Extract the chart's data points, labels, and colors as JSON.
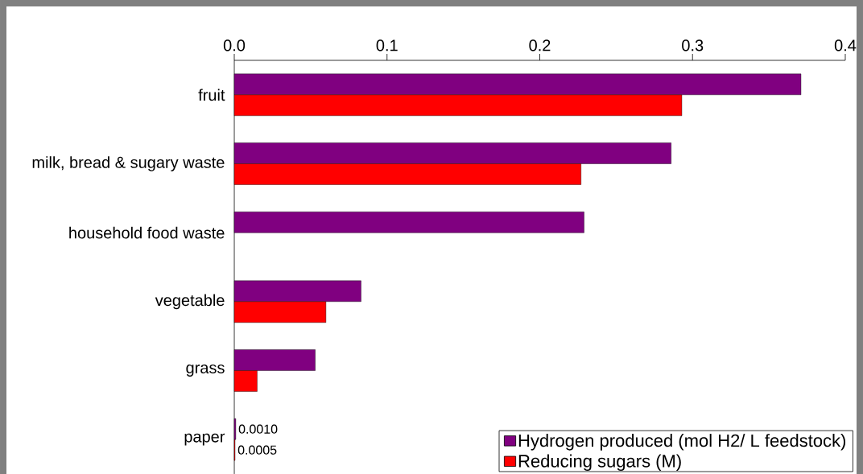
{
  "chart_data": {
    "type": "bar",
    "orientation": "horizontal",
    "categories": [
      "fruit",
      "milk, bread & sugary waste",
      "household food waste",
      "vegetable",
      "grass",
      "paper"
    ],
    "series": [
      {
        "name": "Hydrogen produced (mol H2/ L feedstock)",
        "color": "#800080",
        "values": [
          0.371,
          0.286,
          0.229,
          0.083,
          0.053,
          0.001
        ],
        "value_labels": [
          null,
          null,
          null,
          null,
          null,
          "0.0010"
        ]
      },
      {
        "name": "Reducing sugars (M)",
        "color": "#ff0000",
        "values": [
          0.293,
          0.227,
          null,
          0.06,
          0.015,
          0.0005
        ],
        "value_labels": [
          null,
          null,
          null,
          null,
          null,
          "0.0005"
        ]
      }
    ],
    "xlim": [
      0,
      0.4
    ],
    "xticks": [
      {
        "value": 0,
        "label": "0.0"
      },
      {
        "value": 0.1,
        "label": "0.1"
      },
      {
        "value": 0.2,
        "label": "0.2"
      },
      {
        "value": 0.3,
        "label": "0.3"
      },
      {
        "value": 0.4,
        "label": "0.4"
      }
    ],
    "legend": "bottom right",
    "grid": false
  }
}
